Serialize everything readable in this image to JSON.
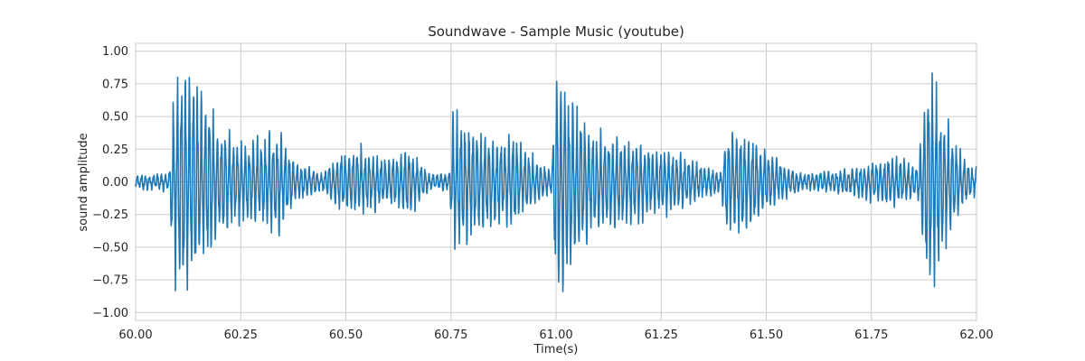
{
  "chart_data": {
    "type": "line",
    "title": "Soundwave - Sample Music (youtube)",
    "xlabel": "Time(s)",
    "ylabel": "sound amplitude",
    "xlim": [
      60.0,
      62.0
    ],
    "ylim": [
      -1.06,
      1.06
    ],
    "x_ticks": [
      60.0,
      60.25,
      60.5,
      60.75,
      61.0,
      61.25,
      61.5,
      61.75,
      62.0
    ],
    "x_tick_labels": [
      "60.00",
      "60.25",
      "60.50",
      "60.75",
      "61.00",
      "61.25",
      "61.50",
      "61.75",
      "62.00"
    ],
    "y_ticks": [
      1.0,
      0.75,
      0.5,
      0.25,
      0.0,
      -0.25,
      -0.5,
      -0.75,
      -1.0
    ],
    "y_tick_labels": [
      "1.00",
      "0.75",
      "0.50",
      "0.25",
      "0.00",
      "−0.25",
      "−0.50",
      "−0.75",
      "−1.00"
    ],
    "grid": true,
    "line_color": "#1f77b4",
    "series": [
      {
        "oscillation_period_s": 0.0095,
        "envelope_x": [
          60.0,
          60.08,
          60.085,
          60.095,
          60.12,
          60.14,
          60.2,
          60.25,
          60.3,
          60.34,
          60.38,
          60.44,
          60.5,
          60.55,
          60.6,
          60.65,
          60.7,
          60.745,
          60.755,
          60.8,
          60.85,
          60.9,
          60.95,
          60.99,
          61.0,
          61.01,
          61.05,
          61.1,
          61.2,
          61.3,
          61.39,
          61.41,
          61.45,
          61.5,
          61.55,
          61.6,
          61.7,
          61.8,
          61.86,
          61.875,
          61.89,
          61.92,
          61.95,
          61.99,
          62.0
        ],
        "envelope_amp": [
          0.05,
          0.07,
          0.52,
          0.72,
          0.86,
          0.78,
          0.42,
          0.3,
          0.34,
          0.42,
          0.15,
          0.06,
          0.26,
          0.24,
          0.18,
          0.26,
          0.06,
          0.06,
          0.53,
          0.42,
          0.35,
          0.33,
          0.18,
          0.1,
          0.92,
          0.86,
          0.55,
          0.38,
          0.3,
          0.2,
          0.08,
          0.42,
          0.38,
          0.25,
          0.12,
          0.06,
          0.1,
          0.2,
          0.12,
          0.6,
          0.9,
          0.55,
          0.3,
          0.1,
          0.12
        ]
      }
    ]
  }
}
